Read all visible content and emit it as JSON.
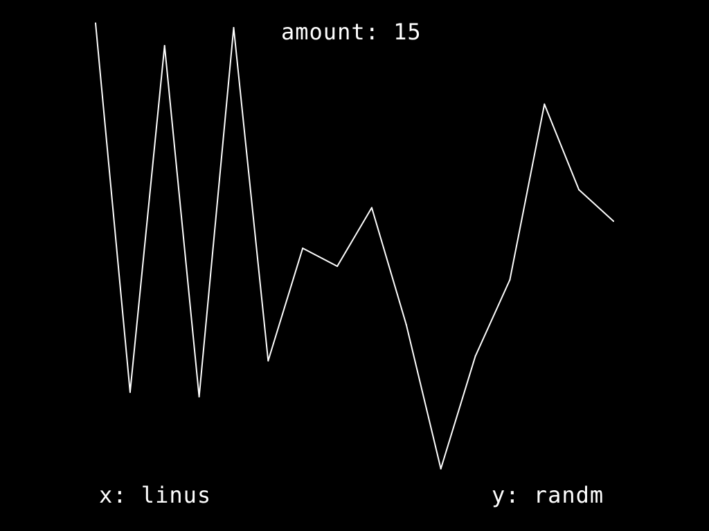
{
  "title": "amount: 15",
  "x_label": "x: linus",
  "y_label": "y: randm",
  "colors": {
    "background": "#000000",
    "line": "#ffffff",
    "text": "#ffffff"
  },
  "chart_data": {
    "type": "line",
    "title": "amount: 15",
    "xlabel": "x: linus",
    "ylabel": "y: randm",
    "grid": false,
    "axes_visible": false,
    "series": [
      {
        "x": [
          0,
          1,
          2,
          3,
          4,
          5,
          6,
          7,
          8,
          9,
          10,
          11,
          12,
          13,
          14,
          15
        ],
        "values": [
          0.99,
          0.17,
          0.94,
          0.16,
          0.98,
          0.24,
          0.49,
          0.45,
          0.58,
          0.32,
          0,
          0.25,
          0.42,
          0.81,
          0.62,
          0.55
        ]
      }
    ]
  }
}
